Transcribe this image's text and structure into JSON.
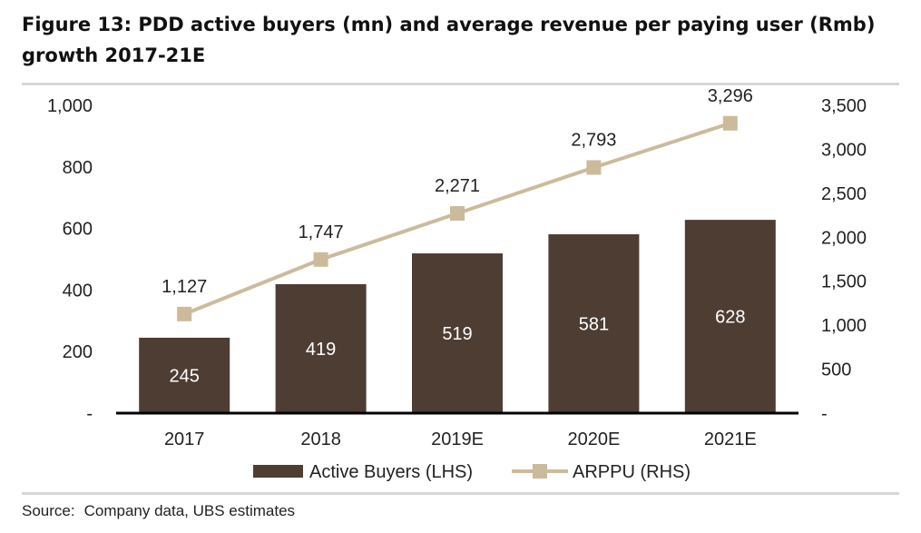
{
  "title": "Figure 13: PDD active buyers (mn) and average revenue per paying user (Rmb) growth 2017-21E",
  "source_label": "Source:",
  "source_text": "Company data, UBS estimates",
  "colors": {
    "bar": "#4e3d33",
    "line": "#cbbb9a",
    "axis": "#000000",
    "bar_label": "#ffffff"
  },
  "chart_data": {
    "type": "bar",
    "categories": [
      "2017",
      "2018",
      "2019E",
      "2020E",
      "2021E"
    ],
    "series": [
      {
        "name": "Active Buyers (LHS)",
        "type": "bar",
        "axis": "left",
        "values": [
          245,
          419,
          519,
          581,
          628
        ],
        "labels": [
          "245",
          "419",
          "519",
          "581",
          "628"
        ]
      },
      {
        "name": "ARPPU (RHS)",
        "type": "line",
        "axis": "right",
        "values": [
          1127,
          1747,
          2271,
          2793,
          3296
        ],
        "labels": [
          "1,127",
          "1,747",
          "2,271",
          "2,793",
          "3,296"
        ]
      }
    ],
    "y_left": {
      "lim": [
        0,
        1000
      ],
      "ticks": [
        {
          "v": 0,
          "label": "-"
        },
        {
          "v": 200,
          "label": "200"
        },
        {
          "v": 400,
          "label": "400"
        },
        {
          "v": 600,
          "label": "600"
        },
        {
          "v": 800,
          "label": "800"
        },
        {
          "v": 1000,
          "label": "1,000"
        }
      ]
    },
    "y_right": {
      "lim": [
        0,
        3500
      ],
      "ticks": [
        {
          "v": 0,
          "label": "-"
        },
        {
          "v": 500,
          "label": "500"
        },
        {
          "v": 1000,
          "label": "1,000"
        },
        {
          "v": 1500,
          "label": "1,500"
        },
        {
          "v": 2000,
          "label": "2,000"
        },
        {
          "v": 2500,
          "label": "2,500"
        },
        {
          "v": 3000,
          "label": "3,000"
        },
        {
          "v": 3500,
          "label": "3,500"
        }
      ]
    },
    "grid": false,
    "legend_position": "bottom"
  }
}
